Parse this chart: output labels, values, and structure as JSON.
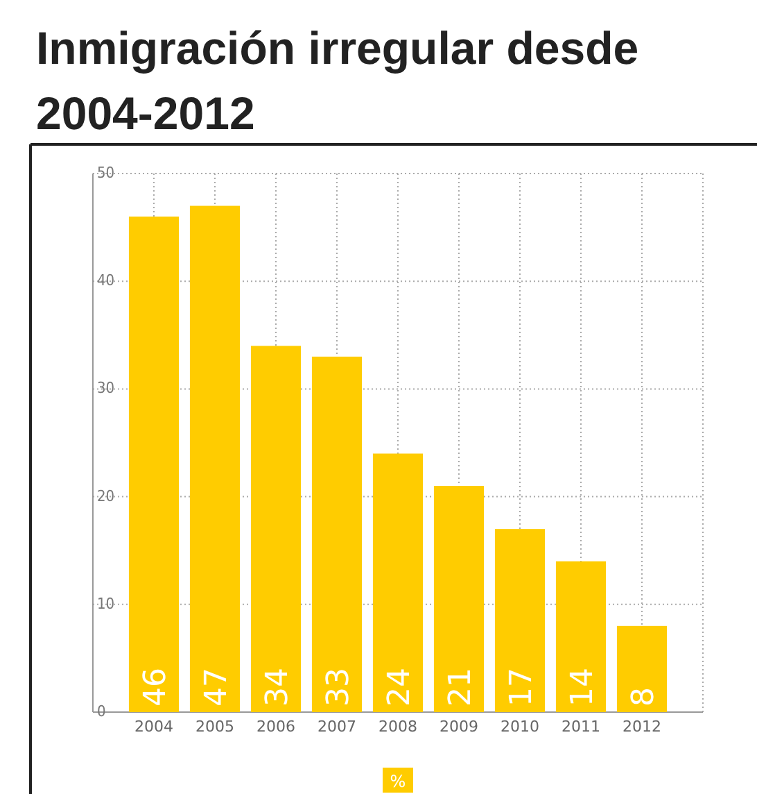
{
  "chart_data": {
    "type": "bar",
    "title": "Inmigración irregular desde 2004-2012",
    "categories": [
      "2004",
      "2005",
      "2006",
      "2007",
      "2008",
      "2009",
      "2010",
      "2011",
      "2012"
    ],
    "series": [
      {
        "name": "%",
        "color": "#ffcc00",
        "values": [
          46,
          47,
          34,
          33,
          24,
          21,
          17,
          14,
          8
        ]
      }
    ],
    "ylim": [
      0,
      50
    ],
    "yticks": [
      0,
      10,
      20,
      30,
      40,
      50
    ],
    "grid": true,
    "data_labels": true,
    "legend": "bottom"
  }
}
